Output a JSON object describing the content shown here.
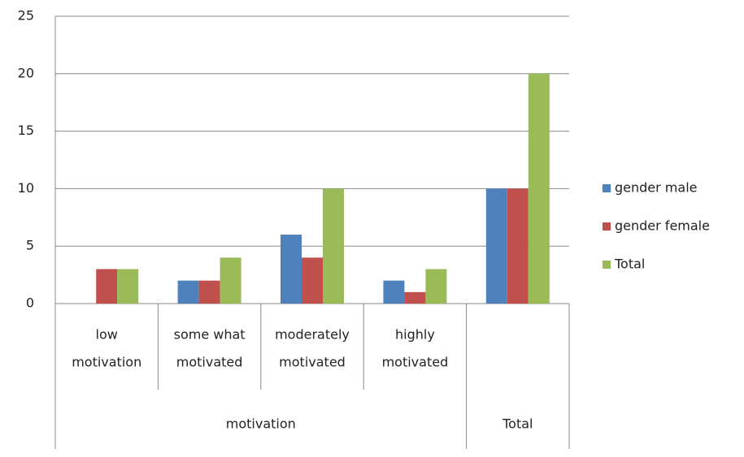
{
  "chart_data": {
    "type": "bar",
    "categories": [
      [
        "low",
        "motivation"
      ],
      [
        "some what",
        "motivated"
      ],
      [
        "moderately",
        "motivated"
      ],
      [
        "highly",
        "motivated"
      ],
      null
    ],
    "groups": [
      "motivation",
      "motivation",
      "motivation",
      "motivation",
      "Total"
    ],
    "series": [
      {
        "name": "gender male",
        "color": "#4f81bd",
        "values": [
          0,
          2,
          6,
          2,
          10
        ]
      },
      {
        "name": "gender female",
        "color": "#c0504d",
        "values": [
          3,
          2,
          4,
          1,
          10
        ]
      },
      {
        "name": "Total",
        "color": "#9bbb59",
        "values": [
          3,
          4,
          10,
          3,
          20
        ]
      }
    ],
    "ylim": [
      0,
      25
    ],
    "yticks": [
      0,
      5,
      10,
      15,
      20,
      25
    ],
    "grid": true,
    "legend": "right"
  }
}
